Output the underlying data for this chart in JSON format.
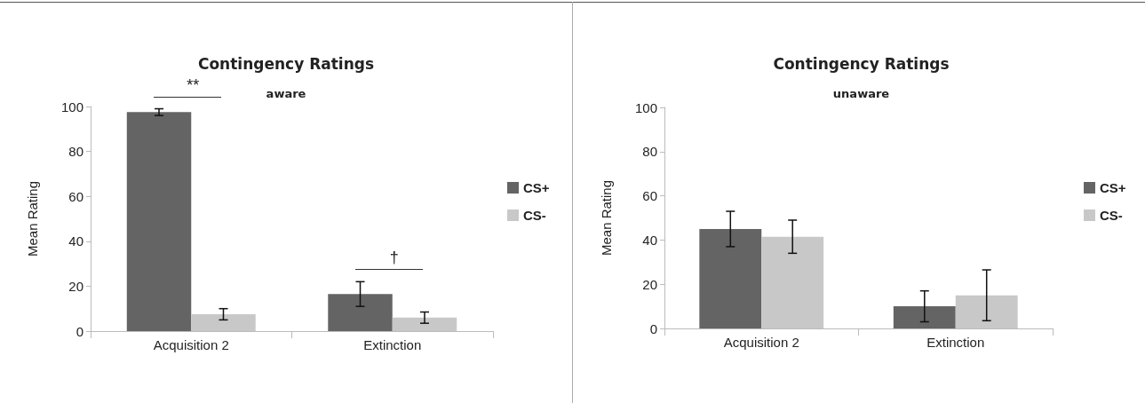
{
  "chart_data": [
    {
      "type": "bar",
      "title": "Contingency Ratings",
      "subtitle": "aware",
      "ylabel": "Mean Rating",
      "categories": [
        "Acquisition 2",
        "Extinction"
      ],
      "series": [
        {
          "name": "CS+",
          "color": "#646464",
          "values": [
            97.5,
            16.5
          ],
          "errors": [
            1.5,
            5.5
          ]
        },
        {
          "name": "CS-",
          "color": "#c8c8c8",
          "values": [
            7.5,
            6
          ],
          "errors": [
            2.5,
            2.5
          ]
        }
      ],
      "ylim": [
        0,
        100
      ],
      "yticks": [
        0,
        20,
        40,
        60,
        80,
        100
      ],
      "grid": false,
      "legend": "right",
      "annotations": [
        "**",
        "†"
      ]
    },
    {
      "type": "bar",
      "title": "Contingency Ratings",
      "subtitle": "unaware",
      "ylabel": "Mean Rating",
      "categories": [
        "Acquisition 2",
        "Extinction"
      ],
      "series": [
        {
          "name": "CS+",
          "color": "#646464",
          "values": [
            45,
            10
          ],
          "errors": [
            8,
            7
          ]
        },
        {
          "name": "CS-",
          "color": "#c8c8c8",
          "values": [
            41.5,
            15
          ],
          "errors": [
            7.5,
            11.5
          ]
        }
      ],
      "ylim": [
        0,
        100
      ],
      "yticks": [
        0,
        20,
        40,
        60,
        80,
        100
      ],
      "grid": false,
      "legend": "right"
    }
  ]
}
